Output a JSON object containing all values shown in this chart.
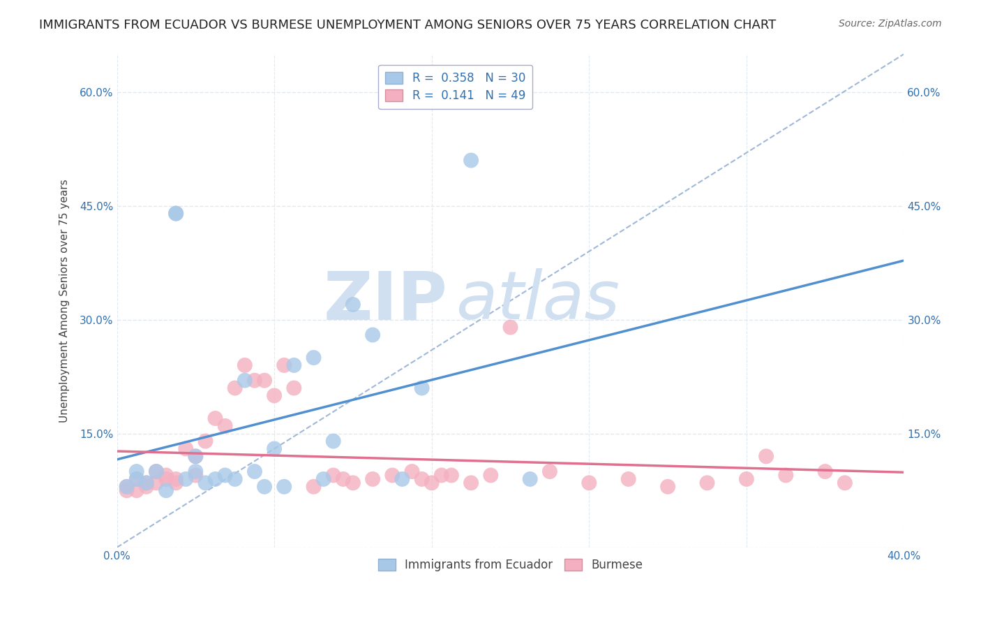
{
  "title": "IMMIGRANTS FROM ECUADOR VS BURMESE UNEMPLOYMENT AMONG SENIORS OVER 75 YEARS CORRELATION CHART",
  "source": "Source: ZipAtlas.com",
  "ylabel": "Unemployment Among Seniors over 75 years",
  "xlim": [
    0.0,
    0.4
  ],
  "ylim": [
    0.0,
    0.65
  ],
  "xticks": [
    0.0,
    0.08,
    0.16,
    0.24,
    0.32,
    0.4
  ],
  "xtick_labels": [
    "0.0%",
    "",
    "",
    "",
    "",
    "40.0%"
  ],
  "ytick_positions": [
    0.0,
    0.15,
    0.3,
    0.45,
    0.6
  ],
  "ytick_labels": [
    "",
    "15.0%",
    "30.0%",
    "45.0%",
    "60.0%"
  ],
  "blue_color": "#A8C8E8",
  "pink_color": "#F4B0C0",
  "blue_line_color": "#5090D0",
  "pink_line_color": "#E07090",
  "diag_color": "#A0B8D8",
  "blue_R": 0.358,
  "blue_N": 30,
  "pink_R": 0.141,
  "pink_N": 49,
  "blue_scatter_x": [
    0.005,
    0.01,
    0.01,
    0.015,
    0.02,
    0.025,
    0.03,
    0.03,
    0.035,
    0.04,
    0.04,
    0.045,
    0.05,
    0.055,
    0.06,
    0.065,
    0.07,
    0.075,
    0.08,
    0.085,
    0.09,
    0.1,
    0.105,
    0.11,
    0.12,
    0.13,
    0.145,
    0.155,
    0.18,
    0.21
  ],
  "blue_scatter_y": [
    0.08,
    0.1,
    0.09,
    0.085,
    0.1,
    0.075,
    0.44,
    0.44,
    0.09,
    0.1,
    0.12,
    0.085,
    0.09,
    0.095,
    0.09,
    0.22,
    0.1,
    0.08,
    0.13,
    0.08,
    0.24,
    0.25,
    0.09,
    0.14,
    0.32,
    0.28,
    0.09,
    0.21,
    0.51,
    0.09
  ],
  "pink_scatter_x": [
    0.005,
    0.005,
    0.01,
    0.01,
    0.015,
    0.015,
    0.02,
    0.02,
    0.025,
    0.025,
    0.03,
    0.03,
    0.035,
    0.04,
    0.04,
    0.045,
    0.05,
    0.055,
    0.06,
    0.065,
    0.07,
    0.075,
    0.08,
    0.085,
    0.09,
    0.1,
    0.11,
    0.115,
    0.12,
    0.13,
    0.14,
    0.15,
    0.155,
    0.16,
    0.165,
    0.17,
    0.18,
    0.19,
    0.2,
    0.22,
    0.24,
    0.26,
    0.28,
    0.3,
    0.32,
    0.33,
    0.34,
    0.36,
    0.37
  ],
  "pink_scatter_y": [
    0.08,
    0.075,
    0.09,
    0.075,
    0.08,
    0.085,
    0.1,
    0.085,
    0.09,
    0.095,
    0.09,
    0.085,
    0.13,
    0.12,
    0.095,
    0.14,
    0.17,
    0.16,
    0.21,
    0.24,
    0.22,
    0.22,
    0.2,
    0.24,
    0.21,
    0.08,
    0.095,
    0.09,
    0.085,
    0.09,
    0.095,
    0.1,
    0.09,
    0.085,
    0.095,
    0.095,
    0.085,
    0.095,
    0.29,
    0.1,
    0.085,
    0.09,
    0.08,
    0.085,
    0.09,
    0.12,
    0.095,
    0.1,
    0.085
  ],
  "watermark_zip": "ZIP",
  "watermark_atlas": "atlas",
  "watermark_color": "#D0E0F0",
  "background_color": "#FFFFFF",
  "grid_color": "#E0E8F0",
  "title_fontsize": 13,
  "axis_label_fontsize": 11,
  "tick_fontsize": 11,
  "legend_fontsize": 12
}
